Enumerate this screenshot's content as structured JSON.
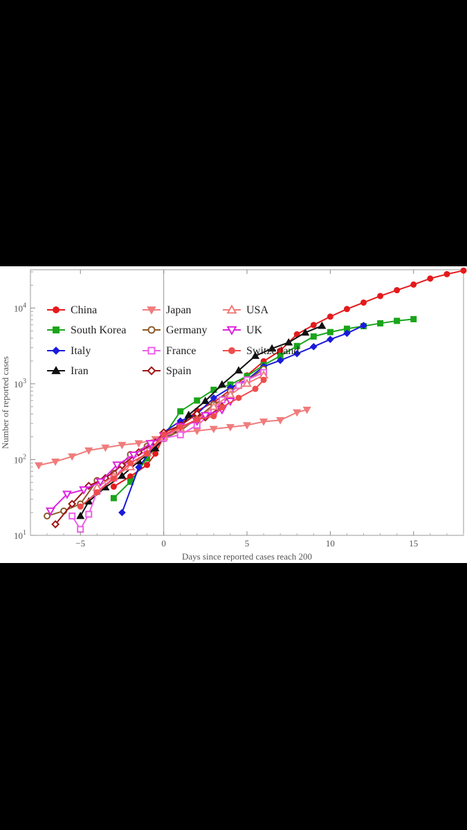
{
  "chart_data": {
    "type": "line",
    "title": "",
    "xlabel": "Days since reported cases reach 200",
    "ylabel": "Number of reported cases",
    "xlim": [
      -8,
      18
    ],
    "ylim": [
      10,
      32000
    ],
    "y_scale": "log",
    "x_ticks": [
      -5,
      0,
      5,
      10,
      15
    ],
    "x_tick_labels": [
      "−5",
      "0",
      "5",
      "10",
      "15"
    ],
    "y_ticks": [
      {
        "value": 10,
        "base": "10",
        "exp": "1"
      },
      {
        "value": 100,
        "base": "10",
        "exp": "2"
      },
      {
        "value": 1000,
        "base": "10",
        "exp": "3"
      },
      {
        "value": 10000,
        "base": "10",
        "exp": "4"
      }
    ],
    "grid": false,
    "legend_position": "top-left",
    "series": [
      {
        "name": "China",
        "color": "#e41a1c",
        "marker": "circle",
        "points": [
          [
            -3,
            44
          ],
          [
            -2,
            60
          ],
          [
            -1,
            85
          ],
          [
            -0.5,
            120
          ],
          [
            0,
            200
          ],
          [
            1,
            290
          ],
          [
            2,
            440
          ],
          [
            3,
            570
          ],
          [
            4,
            830
          ],
          [
            5,
            1290
          ],
          [
            6,
            1980
          ],
          [
            7,
            2740
          ],
          [
            8,
            4500
          ],
          [
            9,
            5970
          ],
          [
            10,
            7700
          ],
          [
            11,
            9700
          ],
          [
            12,
            11800
          ],
          [
            13,
            14400
          ],
          [
            14,
            17200
          ],
          [
            15,
            20400
          ],
          [
            16,
            24500
          ],
          [
            17,
            28000
          ],
          [
            18,
            31200
          ]
        ]
      },
      {
        "name": "South Korea",
        "color": "#1aa51a",
        "marker": "square",
        "points": [
          [
            -3,
            31
          ],
          [
            -2,
            51
          ],
          [
            -1,
            104
          ],
          [
            0,
            204
          ],
          [
            1,
            433
          ],
          [
            2,
            602
          ],
          [
            3,
            833
          ],
          [
            4,
            977
          ],
          [
            5,
            1261
          ],
          [
            6,
            1766
          ],
          [
            7,
            2337
          ],
          [
            8,
            3150
          ],
          [
            9,
            4212
          ],
          [
            10,
            4812
          ],
          [
            11,
            5328
          ],
          [
            12,
            5766
          ],
          [
            13,
            6284
          ],
          [
            14,
            6767
          ],
          [
            15,
            7134
          ]
        ]
      },
      {
        "name": "Italy",
        "color": "#1a1adc",
        "marker": "diamond",
        "points": [
          [
            -2.5,
            20
          ],
          [
            -1.5,
            79
          ],
          [
            -0.5,
            157
          ],
          [
            0,
            229
          ],
          [
            1,
            323
          ],
          [
            2,
            400
          ],
          [
            3,
            650
          ],
          [
            4,
            888
          ],
          [
            5,
            1128
          ],
          [
            6,
            1694
          ],
          [
            7,
            2036
          ],
          [
            8,
            2502
          ],
          [
            9,
            3089
          ],
          [
            10,
            3858
          ],
          [
            11,
            4636
          ],
          [
            12,
            5883
          ]
        ]
      },
      {
        "name": "Iran",
        "color": "#111111",
        "marker": "triangle-up",
        "points": [
          [
            -5,
            18
          ],
          [
            -4.5,
            28
          ],
          [
            -3.5,
            43
          ],
          [
            -2.5,
            61
          ],
          [
            -1.5,
            95
          ],
          [
            -0.5,
            141
          ],
          [
            0,
            200
          ],
          [
            1,
            245
          ],
          [
            1.5,
            388
          ],
          [
            2.5,
            593
          ],
          [
            3.5,
            978
          ],
          [
            4.5,
            1501
          ],
          [
            5.5,
            2336
          ],
          [
            6.5,
            2922
          ],
          [
            7.5,
            3513
          ],
          [
            8.5,
            4747
          ],
          [
            9.5,
            5823
          ]
        ]
      },
      {
        "name": "Japan",
        "color": "#f07c7c",
        "marker": "triangle-down",
        "points": [
          [
            -7.5,
            84
          ],
          [
            -6.5,
            94
          ],
          [
            -5.5,
            110
          ],
          [
            -4.5,
            132
          ],
          [
            -3.5,
            144
          ],
          [
            -2.5,
            156
          ],
          [
            -1.5,
            164
          ],
          [
            -0.5,
            186
          ],
          [
            0,
            210
          ],
          [
            1,
            230
          ],
          [
            2,
            239
          ],
          [
            3,
            254
          ],
          [
            4,
            268
          ],
          [
            5,
            284
          ],
          [
            6,
            317
          ],
          [
            7,
            331
          ],
          [
            8,
            420
          ],
          [
            8.6,
            455
          ]
        ]
      },
      {
        "name": "Germany",
        "color": "#8b5a2b",
        "marker": "circle-open",
        "points": [
          [
            -7,
            18
          ],
          [
            -6,
            21
          ],
          [
            -5,
            26
          ],
          [
            -4,
            53
          ],
          [
            -3,
            66
          ],
          [
            -2,
            117
          ],
          [
            -1,
            150
          ],
          [
            0,
            188
          ],
          [
            1,
            240
          ],
          [
            2,
            349
          ],
          [
            3,
            534
          ],
          [
            3.6,
            639
          ],
          [
            4,
            795
          ],
          [
            5,
            1112
          ],
          [
            6,
            1565
          ]
        ]
      },
      {
        "name": "France",
        "color": "#ee5ee8",
        "marker": "square-open",
        "points": [
          [
            -5.5,
            18
          ],
          [
            -5,
            12
          ],
          [
            -4.5,
            19
          ],
          [
            -4,
            38
          ],
          [
            -3,
            57
          ],
          [
            -2,
            100
          ],
          [
            -1,
            130
          ],
          [
            0,
            191
          ],
          [
            1,
            212
          ],
          [
            2,
            285
          ],
          [
            3,
            423
          ],
          [
            3.5,
            613
          ],
          [
            4.5,
            949
          ],
          [
            5,
            1126
          ],
          [
            6,
            1412
          ]
        ]
      },
      {
        "name": "Spain",
        "color": "#a01515",
        "marker": "diamond-open",
        "points": [
          [
            -6.5,
            14
          ],
          [
            -5.5,
            26
          ],
          [
            -4.5,
            45
          ],
          [
            -3.5,
            57
          ],
          [
            -2.5,
            84
          ],
          [
            -1.5,
            125
          ],
          [
            -0.5,
            169
          ],
          [
            0,
            228
          ],
          [
            1,
            282
          ],
          [
            2,
            401
          ],
          [
            2.5,
            360
          ],
          [
            3.5,
            500
          ]
        ]
      },
      {
        "name": "USA",
        "color": "#f07c7c",
        "marker": "triangle-up-open",
        "points": [
          [
            -4,
            43
          ],
          [
            -3,
            60
          ],
          [
            -2,
            80
          ],
          [
            -1,
            122
          ],
          [
            0,
            200
          ],
          [
            1,
            260
          ],
          [
            2,
            335
          ],
          [
            3,
            500
          ],
          [
            4,
            720
          ],
          [
            5,
            1010
          ],
          [
            6,
            1300
          ]
        ]
      },
      {
        "name": "UK",
        "color": "#dd22dd",
        "marker": "triangle-down-open",
        "points": [
          [
            -6.8,
            21
          ],
          [
            -5.8,
            35
          ],
          [
            -4.8,
            40
          ],
          [
            -3.8,
            51
          ],
          [
            -2.8,
            85
          ],
          [
            -1.8,
            115
          ],
          [
            -0.8,
            163
          ],
          [
            0,
            206
          ],
          [
            1,
            273
          ],
          [
            2,
            321
          ],
          [
            2.5,
            382
          ],
          [
            3.5,
            456
          ],
          [
            4,
            590
          ]
        ]
      },
      {
        "name": "Switzerland",
        "color": "#ef4c4c",
        "marker": "circle",
        "points": [
          [
            -5,
            24
          ],
          [
            -4,
            37
          ],
          [
            -3,
            56
          ],
          [
            -2,
            90
          ],
          [
            -1,
            120
          ],
          [
            0,
            214
          ],
          [
            1,
            268
          ],
          [
            2,
            337
          ],
          [
            3,
            374
          ],
          [
            3.5,
            491
          ],
          [
            4.5,
            652
          ],
          [
            5.5,
            858
          ],
          [
            6,
            1125
          ]
        ]
      }
    ]
  }
}
